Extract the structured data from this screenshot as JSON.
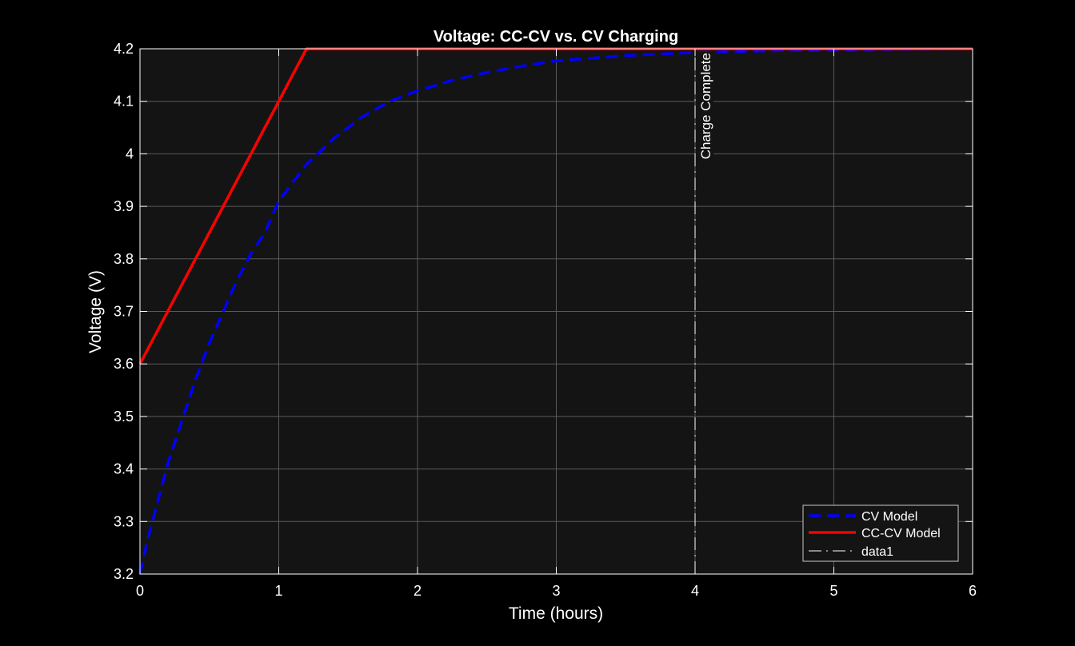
{
  "chart_data": {
    "type": "line",
    "title": "Voltage: CC-CV vs. CV Charging",
    "xlabel": "Time (hours)",
    "ylabel": "Voltage (V)",
    "xlim": [
      0,
      6
    ],
    "ylim": [
      3.2,
      4.2
    ],
    "xticks": [
      "0",
      "1",
      "2",
      "3",
      "4",
      "5",
      "6"
    ],
    "yticks": [
      "3.2",
      "3.3",
      "3.4",
      "3.5",
      "3.6",
      "3.7",
      "3.8",
      "3.9",
      "4",
      "4.1",
      "4.2"
    ],
    "grid": true,
    "legend_position": "bottom-right",
    "background": "#141414",
    "series": [
      {
        "name": "CV Model",
        "color": "#0000ff",
        "style": "dashed",
        "x": [
          0,
          0.05,
          0.1,
          0.2,
          0.3,
          0.4,
          0.5,
          0.6,
          0.7,
          0.8,
          0.9,
          1.0,
          1.2,
          1.4,
          1.6,
          1.8,
          2.0,
          2.25,
          2.5,
          2.75,
          3.0,
          3.5,
          4.0,
          4.5,
          5.0,
          5.5,
          6.0
        ],
        "y": [
          3.2,
          3.26,
          3.31,
          3.41,
          3.49,
          3.57,
          3.64,
          3.7,
          3.76,
          3.81,
          3.85,
          3.91,
          3.98,
          4.03,
          4.07,
          4.1,
          4.12,
          4.14,
          4.155,
          4.167,
          4.177,
          4.187,
          4.193,
          4.196,
          4.198,
          4.199,
          4.2
        ]
      },
      {
        "name": "CC-CV Model",
        "color": "#ff0000",
        "style": "solid",
        "x": [
          0,
          1.2,
          6.0
        ],
        "y": [
          3.6,
          4.2,
          4.2
        ]
      },
      {
        "name": "data1",
        "color": "#ffffff",
        "style": "dashdot",
        "x": [
          4,
          4
        ],
        "y": [
          3.2,
          4.2
        ]
      }
    ],
    "annotations": [
      {
        "text": "Charge Complete",
        "x": 4.0,
        "y": 4.2
      }
    ]
  }
}
